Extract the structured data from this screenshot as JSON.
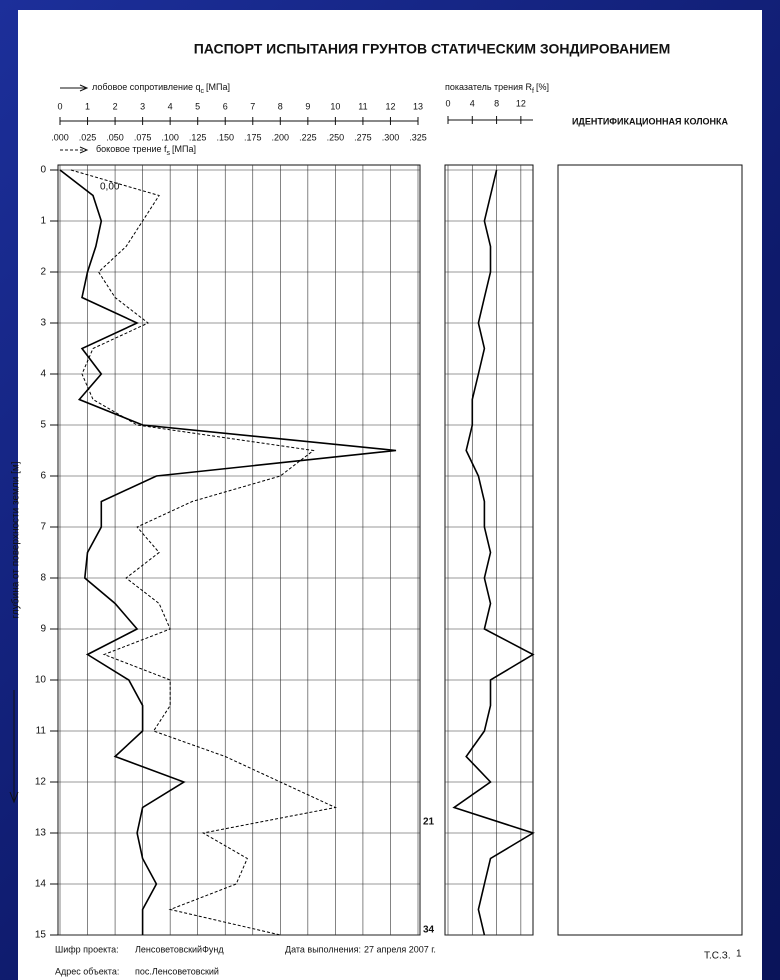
{
  "chart_data": {
    "type": "line",
    "title": "ПАСПОРТ ИСПЫТАНИЯ ГРУНТОВ СТАТИЧЕСКИМ ЗОНДИРОВАНИЕМ",
    "ylabel": "глубина от поверхности земли [м]",
    "column_title": "ИДЕНТИФИКАЦИОННАЯ КОЛОНКА",
    "ylim": [
      0,
      15
    ],
    "yticks": [
      0,
      1,
      2,
      3,
      4,
      5,
      6,
      7,
      8,
      9,
      10,
      11,
      12,
      13,
      14,
      15
    ],
    "invert_y": true,
    "grid": true,
    "depth": [
      0,
      0.5,
      1,
      1.5,
      2,
      2.5,
      3,
      3.5,
      4,
      4.5,
      5,
      5.5,
      6,
      6.5,
      7,
      7.5,
      8,
      8.5,
      9,
      9.5,
      10,
      10.5,
      11,
      11.5,
      12,
      12.5,
      13,
      13.5,
      14,
      14.5,
      15
    ],
    "series": [
      {
        "name": "лобовое сопротивление q",
        "name_sub": "c",
        "unit": "[МПа]",
        "color": "#000000",
        "dash": false,
        "xlim": [
          0,
          13
        ],
        "xticks": [
          0,
          1,
          2,
          3,
          4,
          5,
          6,
          7,
          8,
          9,
          10,
          11,
          12,
          13
        ],
        "values": [
          0,
          1.2,
          1.5,
          1.3,
          1.0,
          0.8,
          2.8,
          0.8,
          1.5,
          0.7,
          3.0,
          12.2,
          3.5,
          1.5,
          1.5,
          1.0,
          0.9,
          2.0,
          2.8,
          1.0,
          2.5,
          3.0,
          3.0,
          2.0,
          4.5,
          3.0,
          2.8,
          3.0,
          3.5,
          3.0,
          3.0
        ]
      },
      {
        "name": "боковое трение f",
        "name_sub": "s",
        "unit": "[МПа]",
        "color": "#000000",
        "dash": true,
        "xlim": [
          0,
          0.325
        ],
        "xticks": [
          {
            "value": 0,
            "label": ".000"
          },
          {
            "value": 0.025,
            "label": ".025"
          },
          {
            "value": 0.05,
            "label": ".050"
          },
          {
            "value": 0.075,
            "label": ".075"
          },
          {
            "value": 0.1,
            "label": ".100"
          },
          {
            "value": 0.125,
            "label": ".125"
          },
          {
            "value": 0.15,
            "label": ".150"
          },
          {
            "value": 0.175,
            "label": ".175"
          },
          {
            "value": 0.2,
            "label": ".200"
          },
          {
            "value": 0.225,
            "label": ".225"
          },
          {
            "value": 0.25,
            "label": ".250"
          },
          {
            "value": 0.275,
            "label": ".275"
          },
          {
            "value": 0.3,
            "label": ".300"
          },
          {
            "value": 0.325,
            "label": ".325"
          }
        ],
        "values": [
          0.01,
          0.09,
          0.075,
          0.06,
          0.035,
          0.05,
          0.08,
          0.03,
          0.02,
          0.03,
          0.07,
          0.23,
          0.2,
          0.12,
          0.07,
          0.09,
          0.06,
          0.09,
          0.1,
          0.04,
          0.1,
          0.1,
          0.085,
          0.15,
          0.2,
          0.25,
          0.13,
          0.17,
          0.16,
          0.1,
          0.2
        ]
      },
      {
        "name": "показатель трения R",
        "name_sub": "f",
        "unit": "[%]",
        "color": "#000000",
        "dash": false,
        "axis": "x2",
        "xlim": [
          0,
          14
        ],
        "xticks": [
          0,
          4,
          8,
          12
        ],
        "values": [
          8,
          7,
          6,
          7,
          7,
          6,
          5,
          6,
          5,
          4,
          4,
          3,
          5,
          6,
          6,
          7,
          6,
          7,
          6,
          14,
          7,
          7,
          6,
          3,
          7,
          1,
          14,
          7,
          6,
          5,
          6
        ]
      }
    ],
    "annotations": [
      "0,00",
      "21",
      "34"
    ]
  },
  "footer": {
    "project_label": "Шифр проекта:",
    "project": "ЛенсоветовскийФунд",
    "date_label": "Дата выполнения:",
    "date": "27 апреля 2007 г.",
    "address_label": "Адрес объекта:",
    "address": "пос.Ленсоветовский",
    "sheet": "Т.С.З.",
    "sheet_no": 1
  }
}
